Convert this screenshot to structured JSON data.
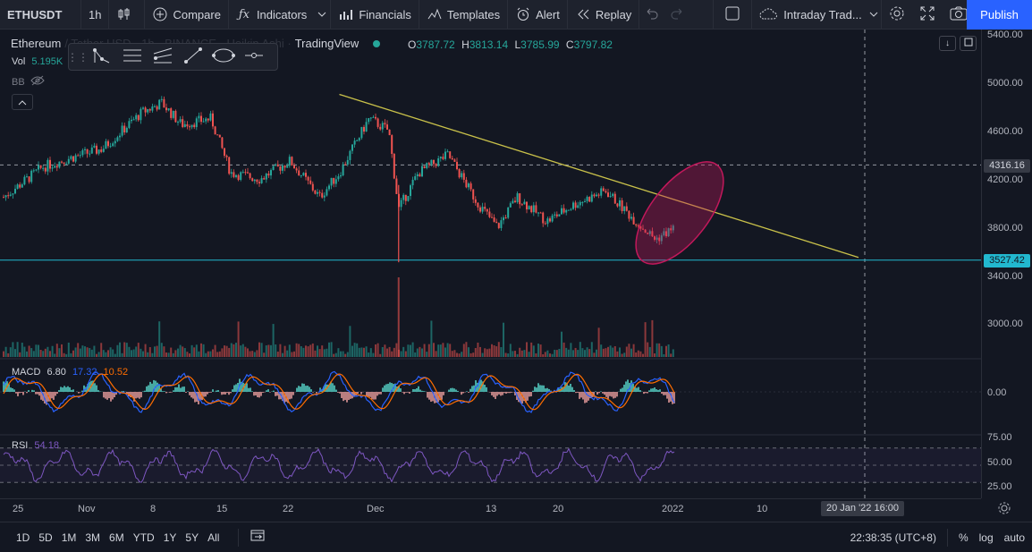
{
  "toolbar": {
    "symbol": "ETHUSDT",
    "interval": "1h",
    "compare": "Compare",
    "indicators": "Indicators",
    "financials": "Financials",
    "templates": "Templates",
    "alert": "Alert",
    "replay": "Replay",
    "layout_name": "Intraday Trad...",
    "publish": "Publish"
  },
  "legend": {
    "title_part1": "Ethereum",
    "title_part2": "/ Tether USD · 1h · BINANCE · Heikin Ashi ·",
    "brand": "TradingView",
    "open_key": "O",
    "open": "3787.72",
    "high_key": "H",
    "high": "3813.14",
    "low_key": "L",
    "low": "3785.99",
    "close_key": "C",
    "close": "3797.82",
    "vol_key": "Vol",
    "vol": "5.195K",
    "bb": "BB"
  },
  "price_axis": {
    "ticks": [
      "5400.00",
      "5000.00",
      "4600.00",
      "4200.00",
      "3800.00",
      "3400.00",
      "3000.00"
    ],
    "crosshair_price": "4316.16",
    "horizontal_line_price": "3527.42",
    "macd_zero": "0.00",
    "rsi_ticks": [
      "75.00",
      "50.00",
      "25.00"
    ]
  },
  "time_axis": {
    "labels": [
      "25",
      "Nov",
      "8",
      "15",
      "22",
      "Dec",
      "13",
      "20",
      "2022",
      "10"
    ],
    "crosshair_time": "20 Jan '22   16:00"
  },
  "macd": {
    "name": "MACD",
    "hist": "6.80",
    "macd": "17.32",
    "signal": "10.52"
  },
  "rsi": {
    "name": "RSI",
    "value": "54.18"
  },
  "bottom": {
    "ranges": [
      "1D",
      "5D",
      "1M",
      "3M",
      "6M",
      "YTD",
      "1Y",
      "5Y",
      "All"
    ],
    "clock": "22:38:35 (UTC+8)",
    "percent": "%",
    "log": "log",
    "auto": "auto"
  },
  "colors": {
    "up": "#26a69a",
    "down": "#ef5350",
    "trendline": "#c9c14a",
    "hline": "#22b8cf",
    "ellipse": "#c2185b",
    "macd_line": "#2962ff",
    "signal_line": "#ff6d00",
    "rsi_line": "#7e57c2",
    "publish": "#2962ff"
  },
  "chart_data": {
    "type": "candlestick",
    "symbol": "ETHUSDT",
    "interval": "1h",
    "ylim": [
      2800,
      5500
    ],
    "series": [
      {
        "name": "price_path",
        "x": [
          "2021-10-25",
          "2021-10-29",
          "2021-11-01",
          "2021-11-04",
          "2021-11-08",
          "2021-11-10",
          "2021-11-12",
          "2021-11-15",
          "2021-11-17",
          "2021-11-20",
          "2021-11-23",
          "2021-11-26",
          "2021-11-28",
          "2021-12-01",
          "2021-12-03",
          "2021-12-04",
          "2021-12-06",
          "2021-12-09",
          "2021-12-12",
          "2021-12-14",
          "2021-12-16",
          "2021-12-19",
          "2021-12-22",
          "2021-12-25",
          "2021-12-28",
          "2021-12-30",
          "2022-01-01"
        ],
        "values": [
          4050,
          4300,
          4380,
          4450,
          4750,
          4830,
          4650,
          4700,
          4250,
          4200,
          4350,
          4050,
          4250,
          4700,
          4600,
          3950,
          4250,
          4400,
          4000,
          3800,
          4050,
          3850,
          4000,
          4100,
          3850,
          3700,
          3800
        ]
      }
    ],
    "drawings": {
      "trendline": {
        "start": [
          "2021-11-28",
          4900
        ],
        "end": [
          "2022-01-20",
          3550
        ]
      },
      "horizontal_line": 3527.42,
      "crosshair": {
        "price": 4316.16,
        "time": "2022-01-20 16:00"
      }
    },
    "rsi_levels": [
      70,
      50,
      30
    ]
  }
}
